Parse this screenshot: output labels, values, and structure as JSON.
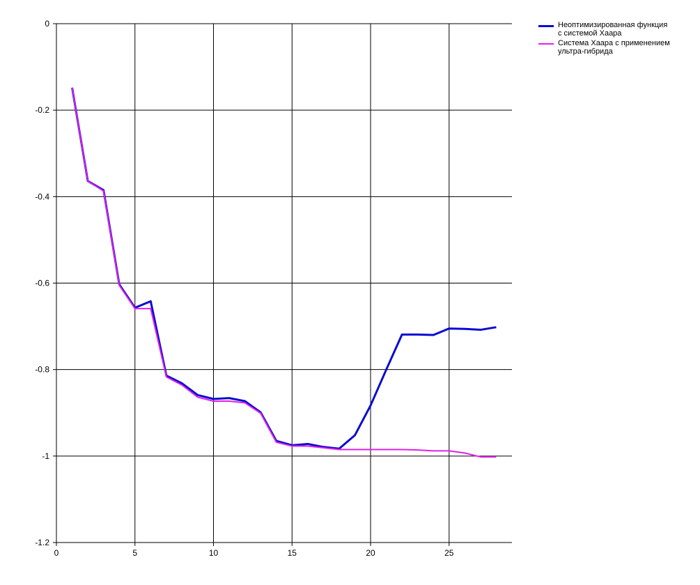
{
  "chart_data": {
    "type": "line",
    "xlim": [
      0,
      29
    ],
    "ylim": [
      -1.2,
      0
    ],
    "xticks": [
      0,
      5,
      10,
      15,
      20,
      25
    ],
    "yticks": [
      0,
      -0.2,
      -0.4,
      -0.6,
      -0.8,
      -1,
      -1.2
    ],
    "x_tick_labels": [
      "0",
      "5",
      "10",
      "15",
      "20",
      "25"
    ],
    "y_tick_labels": [
      "0",
      "-0.2",
      "-0.4",
      "-0.6",
      "-0.8",
      "-1",
      "-1.2"
    ],
    "grid": true,
    "legend_position": "top-right",
    "series": [
      {
        "name": "Неоптимизированная функция\nс системой Хаара",
        "color": "#0a0ad2",
        "x": [
          1,
          2,
          3,
          4,
          5,
          6,
          7,
          8,
          9,
          10,
          11,
          12,
          13,
          14,
          15,
          16,
          17,
          18,
          19,
          20,
          21,
          22,
          23,
          24,
          25,
          26,
          27,
          28
        ],
        "values": [
          -0.148,
          -0.364,
          -0.385,
          -0.603,
          -0.657,
          -0.642,
          -0.814,
          -0.832,
          -0.859,
          -0.868,
          -0.866,
          -0.873,
          -0.899,
          -0.965,
          -0.975,
          -0.972,
          -0.979,
          -0.983,
          -0.952,
          -0.883,
          -0.8,
          -0.719,
          -0.719,
          -0.72,
          -0.705,
          -0.706,
          -0.708,
          -0.702
        ]
      },
      {
        "name": "Система Хаара с применением\nультра-гибрида",
        "color": "#e020e8",
        "x": [
          1,
          2,
          3,
          4,
          5,
          6,
          7,
          8,
          9,
          10,
          11,
          12,
          13,
          14,
          15,
          16,
          17,
          18,
          19,
          20,
          21,
          22,
          23,
          24,
          25,
          26,
          27,
          28
        ],
        "values": [
          -0.148,
          -0.364,
          -0.387,
          -0.605,
          -0.659,
          -0.659,
          -0.817,
          -0.836,
          -0.864,
          -0.873,
          -0.873,
          -0.877,
          -0.901,
          -0.968,
          -0.977,
          -0.977,
          -0.981,
          -0.985,
          -0.985,
          -0.985,
          -0.985,
          -0.985,
          -0.986,
          -0.988,
          -0.988,
          -0.993,
          -1.002,
          -1.002
        ]
      }
    ]
  }
}
